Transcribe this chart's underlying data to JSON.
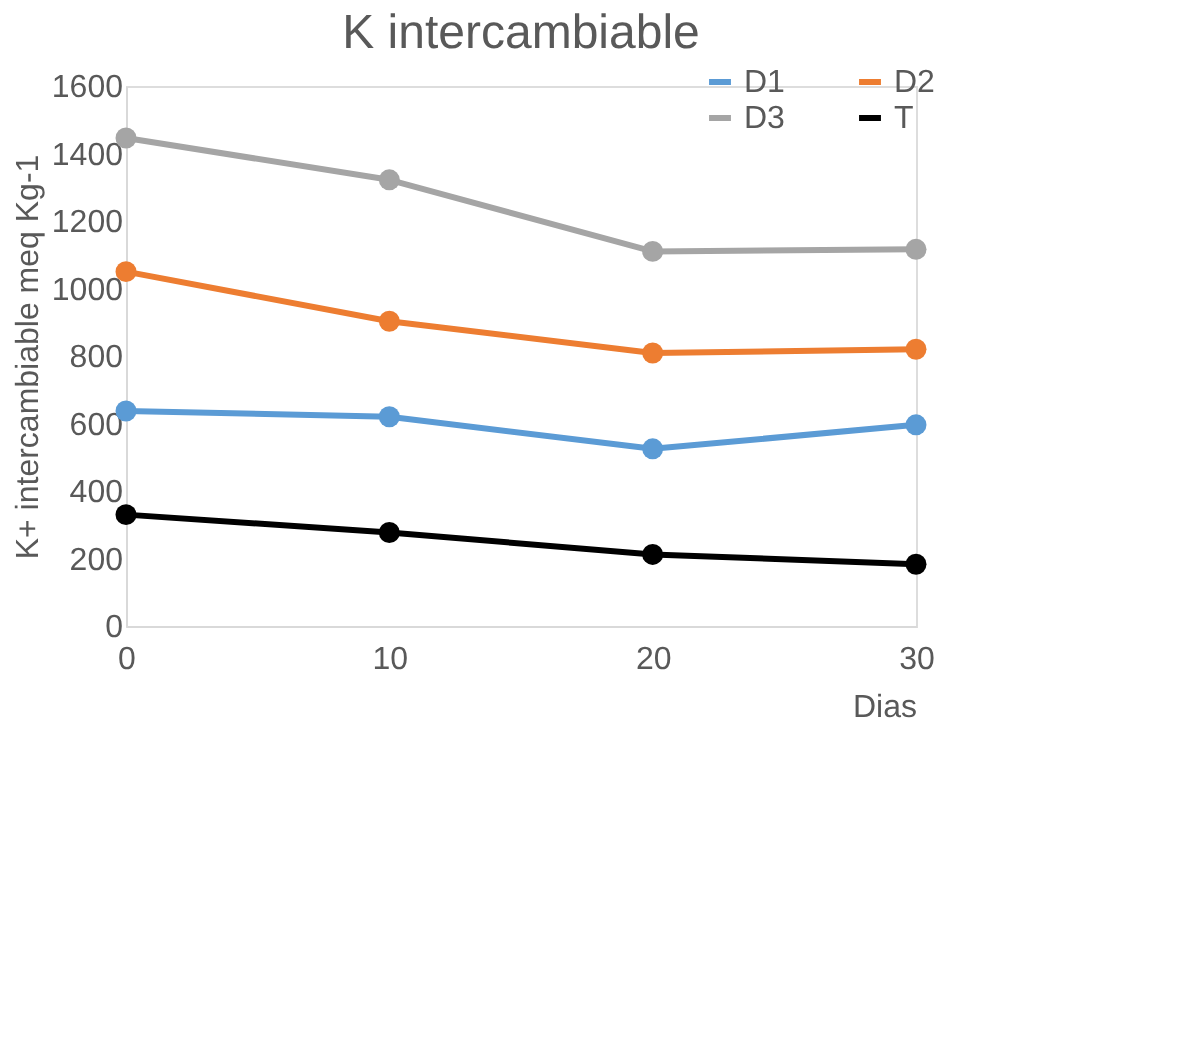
{
  "chart_data": {
    "type": "line",
    "title": "K intercambiable",
    "xlabel": "Dias",
    "ylabel": "K+ intercambiable meq Kg-1",
    "x": [
      0,
      10,
      20,
      30
    ],
    "xlim": [
      0,
      30
    ],
    "xticks": [
      0,
      10,
      20,
      30
    ],
    "ylim": [
      0,
      1600
    ],
    "yticks": [
      0,
      200,
      400,
      600,
      800,
      1000,
      1200,
      1400,
      1600
    ],
    "grid": false,
    "legend": "top right",
    "marker": "circle",
    "line_style": "solid",
    "series": [
      {
        "name": "D1",
        "color": "#5b9bd5",
        "values": [
          637,
          620,
          525,
          596
        ]
      },
      {
        "name": "D2",
        "color": "#ed7d31",
        "values": [
          1050,
          903,
          809,
          820
        ]
      },
      {
        "name": "D3",
        "color": "#a5a5a5",
        "values": [
          1446,
          1322,
          1110,
          1116
        ]
      },
      {
        "name": "T",
        "color": "#000000",
        "values": [
          330,
          277,
          212,
          183
        ]
      }
    ]
  }
}
